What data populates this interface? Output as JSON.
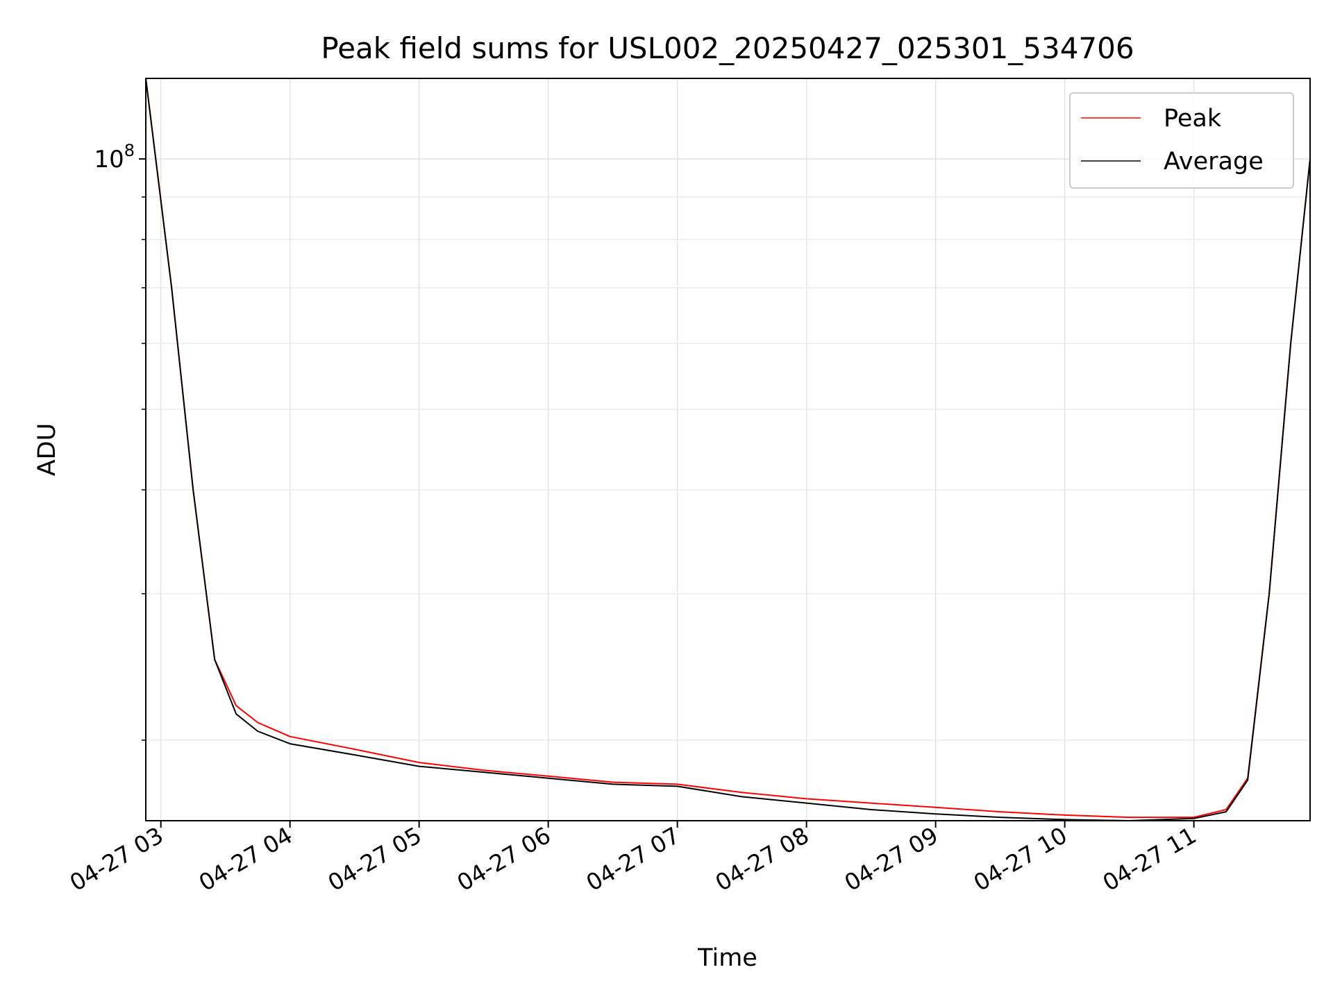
{
  "chart_data": {
    "type": "line",
    "title": "Peak field sums for USL002_20250427_025301_534706",
    "xlabel": "Time",
    "ylabel": "ADU",
    "yscale": "log",
    "grid": true,
    "legend_position": "top-right",
    "xlim": [
      "04-27 02:53",
      "04-27 11:54"
    ],
    "ylim": [
      16000000,
      125000000
    ],
    "xticks": [
      {
        "value": "04-27 03:00",
        "label": "04-27 03"
      },
      {
        "value": "04-27 04:00",
        "label": "04-27 04"
      },
      {
        "value": "04-27 05:00",
        "label": "04-27 05"
      },
      {
        "value": "04-27 06:00",
        "label": "04-27 06"
      },
      {
        "value": "04-27 07:00",
        "label": "04-27 07"
      },
      {
        "value": "04-27 08:00",
        "label": "04-27 08"
      },
      {
        "value": "04-27 09:00",
        "label": "04-27 09"
      },
      {
        "value": "04-27 10:00",
        "label": "04-27 10"
      },
      {
        "value": "04-27 11:00",
        "label": "04-27 11"
      }
    ],
    "yticks_major": [
      {
        "value": 100000000,
        "base": "10",
        "exponent": "8"
      }
    ],
    "yticks_minor": [
      20000000,
      30000000,
      40000000,
      50000000,
      60000000,
      70000000,
      80000000,
      90000000
    ],
    "series": [
      {
        "name": "Peak",
        "color": "#ff0000",
        "x": [
          "04-27 02:53",
          "04-27 03:05",
          "04-27 03:15",
          "04-27 03:25",
          "04-27 03:35",
          "04-27 03:45",
          "04-27 04:00",
          "04-27 04:30",
          "04-27 05:00",
          "04-27 05:30",
          "04-27 06:00",
          "04-27 06:30",
          "04-27 07:00",
          "04-27 07:30",
          "04-27 08:00",
          "04-27 08:30",
          "04-27 09:00",
          "04-27 09:30",
          "04-27 10:00",
          "04-27 10:30",
          "04-27 11:00",
          "04-27 11:15",
          "04-27 11:25",
          "04-27 11:35",
          "04-27 11:45",
          "04-27 11:54"
        ],
        "y": [
          125000000,
          70000000,
          40000000,
          25000000,
          22000000,
          21000000,
          20200000,
          19500000,
          18800000,
          18400000,
          18100000,
          17800000,
          17700000,
          17300000,
          17000000,
          16800000,
          16600000,
          16400000,
          16250000,
          16150000,
          16150000,
          16500000,
          18000000,
          30000000,
          60000000,
          100000000
        ]
      },
      {
        "name": "Average",
        "color": "#000000",
        "x": [
          "04-27 02:53",
          "04-27 03:05",
          "04-27 03:15",
          "04-27 03:25",
          "04-27 03:35",
          "04-27 03:45",
          "04-27 04:00",
          "04-27 04:30",
          "04-27 05:00",
          "04-27 05:30",
          "04-27 06:00",
          "04-27 06:30",
          "04-27 07:00",
          "04-27 07:30",
          "04-27 08:00",
          "04-27 08:30",
          "04-27 09:00",
          "04-27 09:30",
          "04-27 10:00",
          "04-27 10:30",
          "04-27 11:00",
          "04-27 11:15",
          "04-27 11:25",
          "04-27 11:35",
          "04-27 11:45",
          "04-27 11:54"
        ],
        "y": [
          125000000,
          70000000,
          40000000,
          25000000,
          21500000,
          20500000,
          19800000,
          19200000,
          18600000,
          18300000,
          18000000,
          17700000,
          17600000,
          17100000,
          16800000,
          16500000,
          16300000,
          16150000,
          16050000,
          16000000,
          16100000,
          16400000,
          17900000,
          30000000,
          60000000,
          100000000
        ]
      }
    ]
  }
}
